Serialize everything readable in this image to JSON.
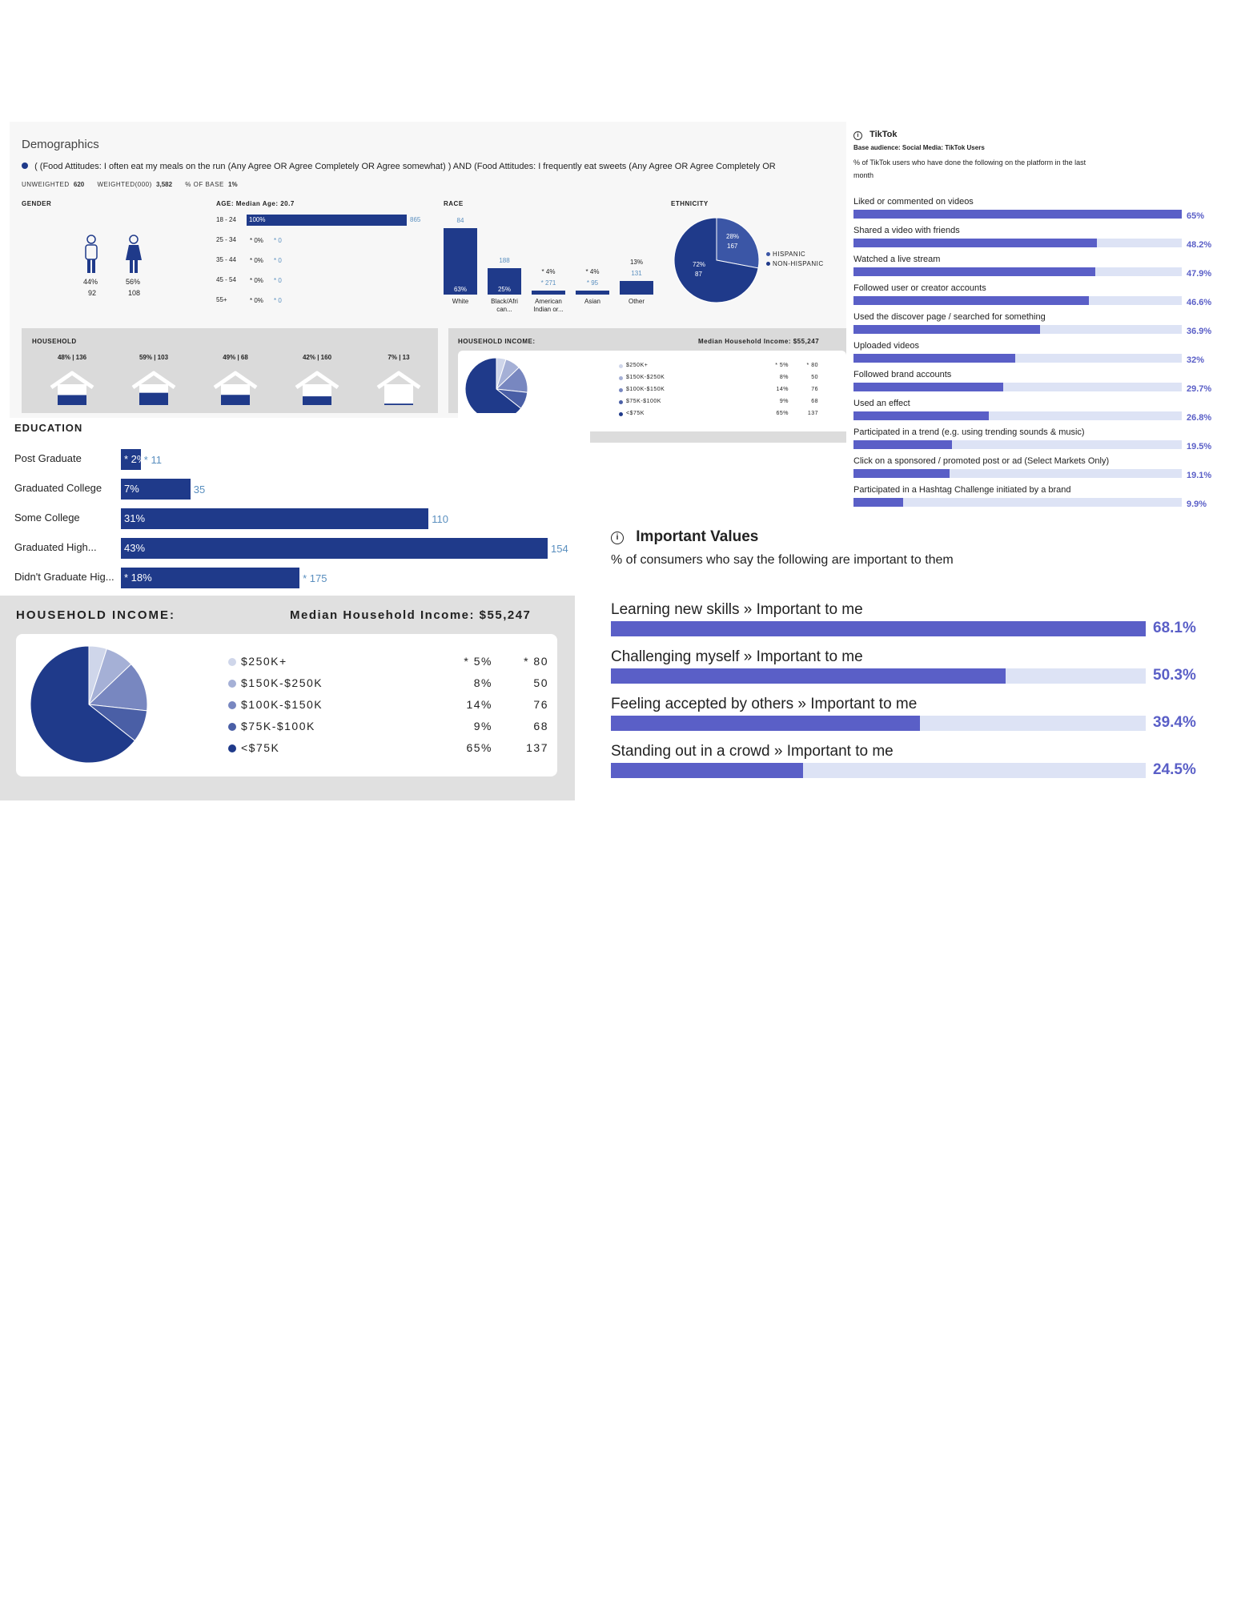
{
  "demographics": {
    "title": "Demographics",
    "query": "( (Food Attitudes: I often eat my meals on the run (Any Agree OR Agree Completely OR Agree somewhat) ) AND (Food Attitudes: I frequently eat sweets (Any Agree OR Agree Completely OR",
    "unweighted_label": "UNWEIGHTED",
    "unweighted_value": "620",
    "weighted_label": "WEIGHTED(000)",
    "weighted_value": "3,582",
    "base_label": "% OF BASE",
    "base_value": "1%"
  },
  "gender": {
    "title": "GENDER",
    "male_pct": "44%",
    "male_count": "92",
    "female_pct": "56%",
    "female_count": "108"
  },
  "age": {
    "title": "AGE: Median Age: 20.7",
    "rows": [
      {
        "label": "18 - 24",
        "pct": "100%",
        "count": "865",
        "value": 100
      },
      {
        "label": "25 - 34",
        "pct": "* 0%",
        "count": "* 0",
        "value": 0
      },
      {
        "label": "35 - 44",
        "pct": "* 0%",
        "count": "* 0",
        "value": 0
      },
      {
        "label": "45 - 54",
        "pct": "* 0%",
        "count": "* 0",
        "value": 0
      },
      {
        "label": "55+",
        "pct": "* 0%",
        "count": "* 0",
        "value": 0
      }
    ]
  },
  "race": {
    "title": "RACE",
    "bars": [
      {
        "name": "White",
        "name2": "",
        "pct": "63%",
        "count": "84",
        "value": 63
      },
      {
        "name": "Black/Afri",
        "name2": "can...",
        "pct": "25%",
        "count": "188",
        "value": 25
      },
      {
        "name": "American",
        "name2": "Indian or...",
        "pct": "* 4%",
        "count": "* 271",
        "value": 4
      },
      {
        "name": "Asian",
        "name2": "",
        "pct": "* 4%",
        "count": "* 95",
        "value": 4
      },
      {
        "name": "Other",
        "name2": "",
        "pct": "13%",
        "count": "131",
        "value": 13
      }
    ]
  },
  "ethnicity": {
    "title": "ETHNICITY",
    "hispanic_pct": "28%",
    "hispanic_count": "167",
    "non_hispanic_pct": "72%",
    "non_hispanic_count": "87",
    "legend_hispanic": "HISPANIC",
    "legend_non_hispanic": "NON-HISPANIC",
    "colors": {
      "hispanic": "#3b56a6",
      "non_hispanic": "#1f3a8a"
    }
  },
  "household": {
    "title": "HOUSEHOLD",
    "items": [
      {
        "label": "48% | 136",
        "fill": 0.48
      },
      {
        "label": "59% | 103",
        "fill": 0.59
      },
      {
        "label": "49% | 68",
        "fill": 0.49
      },
      {
        "label": "42% | 160",
        "fill": 0.42
      },
      {
        "label": "7% | 13",
        "fill": 0.07
      }
    ]
  },
  "household_income_small": {
    "title": "HOUSEHOLD INCOME:",
    "median": "Median Household Income: $55,247"
  },
  "education": {
    "title": "EDUCATION",
    "rows": [
      {
        "label": "Post Graduate",
        "pct": "* 2%",
        "count": "* 11",
        "value": 2
      },
      {
        "label": "Graduated College",
        "pct": "7%",
        "count": "35",
        "value": 7
      },
      {
        "label": "Some College",
        "pct": "31%",
        "count": "110",
        "value": 31
      },
      {
        "label": "Graduated High...",
        "pct": "43%",
        "count": "154",
        "value": 43
      },
      {
        "label": "Didn't Graduate Hig...",
        "pct": "* 18%",
        "count": "* 175",
        "value": 18
      }
    ]
  },
  "household_income": {
    "title": "HOUSEHOLD INCOME:",
    "median": "Median Household Income: $55,247",
    "rows": [
      {
        "label": "$250K+",
        "pct": "* 5%",
        "count": "* 80",
        "value": 5,
        "color": "#cfd6ea"
      },
      {
        "label": "$150K-$250K",
        "pct": "8%",
        "count": "50",
        "value": 8,
        "color": "#a5b0d6"
      },
      {
        "label": "$100K-$150K",
        "pct": "14%",
        "count": "76",
        "value": 14,
        "color": "#7887c0"
      },
      {
        "label": "$75K-$100K",
        "pct": "9%",
        "count": "68",
        "value": 9,
        "color": "#4a5fa6"
      },
      {
        "label": "<$75K",
        "pct": "65%",
        "count": "137",
        "value": 65,
        "color": "#1f3a8a"
      }
    ]
  },
  "tiktok": {
    "title": "TikTok",
    "base": "Base audience: Social Media: TikTok Users",
    "subtitle_line1": "% of TikTok users who have done the following on the platform in the last",
    "subtitle_line2": "month",
    "items": [
      {
        "label": "Liked or commented on videos",
        "pct": "65%",
        "value": 65
      },
      {
        "label": "Shared a video with friends",
        "pct": "48.2%",
        "value": 48.2
      },
      {
        "label": "Watched a live stream",
        "pct": "47.9%",
        "value": 47.9
      },
      {
        "label": "Followed user or creator accounts",
        "pct": "46.6%",
        "value": 46.6
      },
      {
        "label": "Used the discover page / searched for something",
        "pct": "36.9%",
        "value": 36.9
      },
      {
        "label": "Uploaded videos",
        "pct": "32%",
        "value": 32
      },
      {
        "label": "Followed brand accounts",
        "pct": "29.7%",
        "value": 29.7
      },
      {
        "label": "Used an effect",
        "pct": "26.8%",
        "value": 26.8
      },
      {
        "label": "Participated in a trend (e.g. using trending sounds & music)",
        "pct": "19.5%",
        "value": 19.5
      },
      {
        "label": "Click on a sponsored / promoted post or ad (Select Markets Only)",
        "pct": "19.1%",
        "value": 19.1
      },
      {
        "label": "Participated in a Hashtag Challenge initiated by a brand",
        "pct": "9.9%",
        "value": 9.9
      }
    ]
  },
  "important_values": {
    "title": "Important Values",
    "subtitle": "% of consumers who say the following are important to them",
    "items": [
      {
        "label": "Learning new skills » Important to me",
        "pct": "68.1%",
        "value": 68.1
      },
      {
        "label": "Challenging myself » Important to me",
        "pct": "50.3%",
        "value": 50.3
      },
      {
        "label": "Feeling accepted by others » Important to me",
        "pct": "39.4%",
        "value": 39.4
      },
      {
        "label": "Standing out in a crowd » Important to me",
        "pct": "24.5%",
        "value": 24.5
      }
    ]
  },
  "chart_data": [
    {
      "type": "bar",
      "title": "AGE: Median Age: 20.7",
      "categories": [
        "18 - 24",
        "25 - 34",
        "35 - 44",
        "45 - 54",
        "55+"
      ],
      "values": [
        100,
        0,
        0,
        0,
        0
      ]
    },
    {
      "type": "bar",
      "title": "RACE",
      "categories": [
        "White",
        "Black/African...",
        "American Indian or...",
        "Asian",
        "Other"
      ],
      "values": [
        63,
        25,
        4,
        4,
        13
      ]
    },
    {
      "type": "pie",
      "title": "ETHNICITY",
      "categories": [
        "HISPANIC",
        "NON-HISPANIC"
      ],
      "values": [
        28,
        72
      ]
    },
    {
      "type": "bar",
      "title": "EDUCATION",
      "categories": [
        "Post Graduate",
        "Graduated College",
        "Some College",
        "Graduated High...",
        "Didn't Graduate Hig..."
      ],
      "values": [
        2,
        7,
        31,
        43,
        18
      ]
    },
    {
      "type": "pie",
      "title": "HOUSEHOLD INCOME:",
      "categories": [
        "$250K+",
        "$150K-$250K",
        "$100K-$150K",
        "$75K-$100K",
        "<$75K"
      ],
      "values": [
        5,
        8,
        14,
        9,
        65
      ]
    },
    {
      "type": "bar",
      "title": "TikTok",
      "categories": [
        "Liked or commented on videos",
        "Shared a video with friends",
        "Watched a live stream",
        "Followed user or creator accounts",
        "Used the discover page / searched for something",
        "Uploaded videos",
        "Followed brand accounts",
        "Used an effect",
        "Participated in a trend (e.g. using trending sounds & music)",
        "Click on a sponsored / promoted post or ad (Select Markets Only)",
        "Participated in a Hashtag Challenge initiated by a brand"
      ],
      "values": [
        65,
        48.2,
        47.9,
        46.6,
        36.9,
        32,
        29.7,
        26.8,
        19.5,
        19.1,
        9.9
      ]
    },
    {
      "type": "bar",
      "title": "Important Values",
      "categories": [
        "Learning new skills » Important to me",
        "Challenging myself » Important to me",
        "Feeling accepted by others » Important to me",
        "Standing out in a crowd » Important to me"
      ],
      "values": [
        68.1,
        50.3,
        39.4,
        24.5
      ]
    }
  ]
}
